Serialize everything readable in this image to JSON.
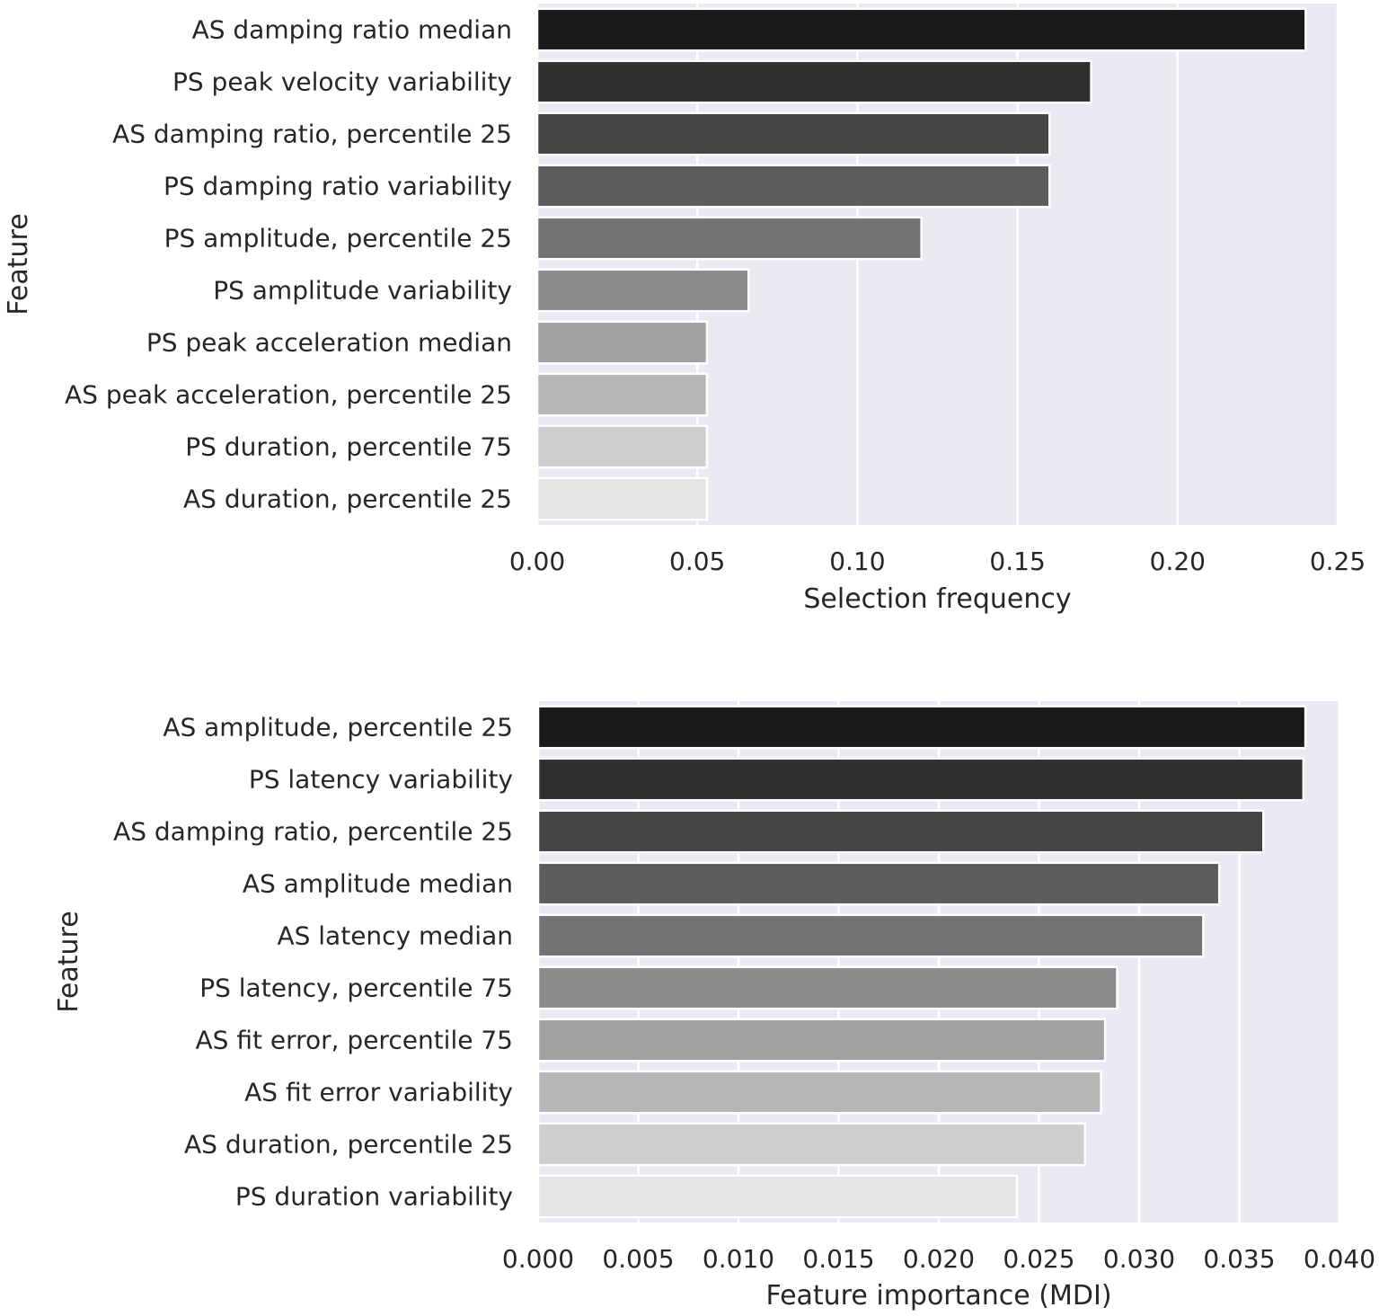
{
  "chart_data": [
    {
      "type": "bar",
      "orientation": "horizontal",
      "xlabel": "Selection frequency",
      "ylabel": "Feature",
      "xlim": [
        0,
        0.25
      ],
      "xticks": [
        0.0,
        0.05,
        0.1,
        0.15,
        0.2,
        0.25
      ],
      "xtick_labels": [
        "0.00",
        "0.05",
        "0.10",
        "0.15",
        "0.20",
        "0.25"
      ],
      "grid": true,
      "categories": [
        "AS damping ratio median",
        "PS peak velocity variability",
        "AS damping ratio, percentile 25",
        "PS damping ratio variability",
        "PS amplitude, percentile 25",
        "PS amplitude variability",
        "PS peak acceleration median",
        "AS peak acceleration, percentile 25",
        "PS duration, percentile 75",
        "AS duration, percentile 25"
      ],
      "values": [
        0.24,
        0.173,
        0.16,
        0.16,
        0.12,
        0.066,
        0.053,
        0.053,
        0.053,
        0.053
      ],
      "colors": [
        "#1a1a1a",
        "#2f2f2f",
        "#454545",
        "#5c5c5c",
        "#737373",
        "#8a8a8a",
        "#a0a0a0",
        "#b7b7b7",
        "#cecece",
        "#e5e5e5"
      ]
    },
    {
      "type": "bar",
      "orientation": "horizontal",
      "xlabel": "Feature importance (MDI)",
      "ylabel": "Feature",
      "xlim": [
        0,
        0.04
      ],
      "xticks": [
        0.0,
        0.005,
        0.01,
        0.015,
        0.02,
        0.025,
        0.03,
        0.035,
        0.04
      ],
      "xtick_labels": [
        "0.000",
        "0.005",
        "0.010",
        "0.015",
        "0.020",
        "0.025",
        "0.030",
        "0.035",
        "0.040"
      ],
      "grid": true,
      "categories": [
        "AS amplitude, percentile 25",
        "PS latency variability",
        "AS damping ratio, percentile 25",
        "AS amplitude median",
        "AS latency median",
        "PS latency, percentile 75",
        "AS fit error, percentile 75",
        "AS fit error variability",
        "AS duration, percentile 25",
        "PS duration variability"
      ],
      "values": [
        0.0383,
        0.0382,
        0.0362,
        0.034,
        0.0332,
        0.0289,
        0.0283,
        0.0281,
        0.0273,
        0.0239
      ],
      "colors": [
        "#1a1a1a",
        "#2f2f2f",
        "#454545",
        "#5c5c5c",
        "#737373",
        "#8a8a8a",
        "#a0a0a0",
        "#b7b7b7",
        "#cecece",
        "#e5e5e5"
      ]
    }
  ],
  "style": {
    "plot_background": "#eaeaf2",
    "grid_color": "#ffffff",
    "text_color": "#262626"
  }
}
